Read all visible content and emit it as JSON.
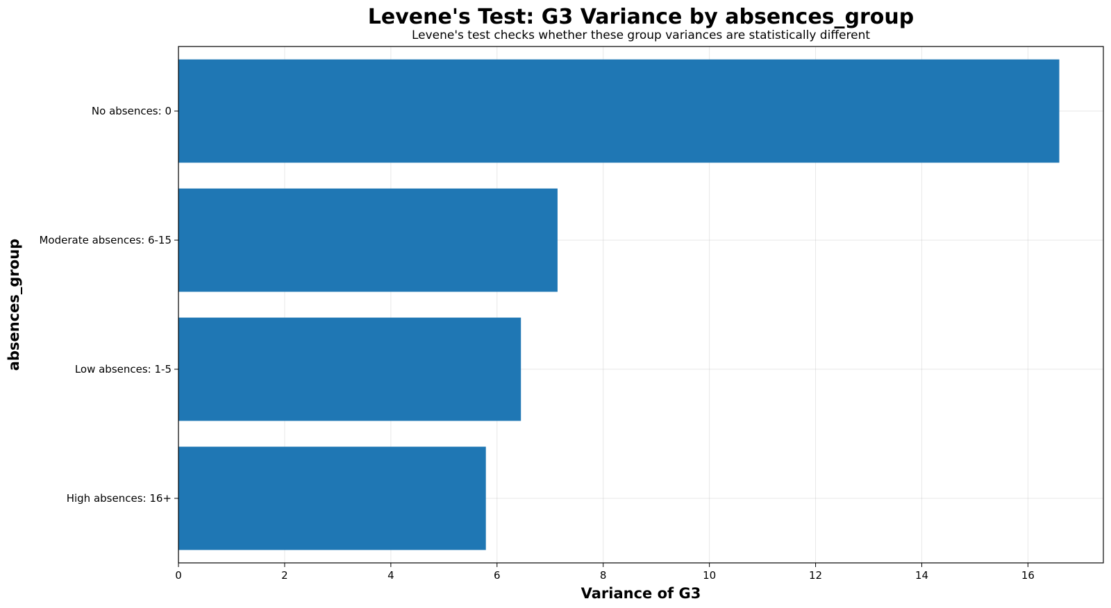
{
  "chart_data": {
    "type": "bar",
    "orientation": "horizontal",
    "title": "Levene's Test: G3 Variance by absences_group",
    "subtitle": "Levene's test checks whether these group variances are statistically different",
    "xlabel": "Variance of G3",
    "ylabel": "absences_group",
    "categories": [
      "No absences: 0",
      "Moderate absences: 6-15",
      "Low absences: 1-5",
      "High absences: 16+"
    ],
    "values": [
      16.59,
      7.14,
      6.45,
      5.79
    ],
    "xlim": [
      0,
      17.42
    ],
    "xticks": [
      0,
      2,
      4,
      6,
      8,
      10,
      12,
      14,
      16
    ],
    "grid": true,
    "bar_color": "#1f77b4"
  }
}
